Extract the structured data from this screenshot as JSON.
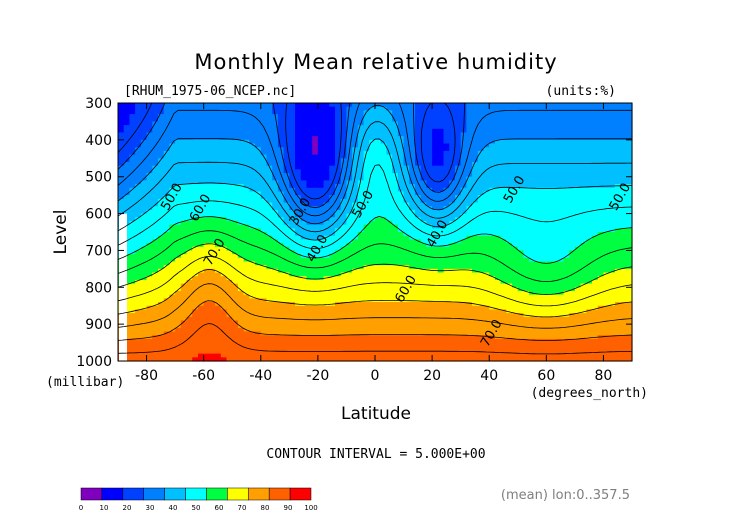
{
  "chart_data": {
    "type": "heatmap",
    "title": "Monthly Mean relative humidity",
    "subtitle_left": "[RHUM_1975-06_NCEP.nc]",
    "subtitle_right": "(units:%)",
    "ylabel": "Level",
    "ylabel_units": "(millibar)",
    "xlabel": "Latitude",
    "xlabel_units": "(degrees_north)",
    "x_ticks": [
      -80,
      -60,
      -40,
      -20,
      0,
      20,
      40,
      60,
      80
    ],
    "y_ticks": [
      300,
      400,
      500,
      600,
      700,
      800,
      900,
      1000
    ],
    "xlim": [
      -90,
      90
    ],
    "ylim": [
      1000,
      300
    ],
    "contour_interval_text": "CONTOUR INTERVAL = 5.000E+00",
    "footer_right": "(mean) lon:0..357.5",
    "colorbar": {
      "ticks": [
        "0",
        "10",
        "20",
        "30",
        "40",
        "50",
        "60",
        "70",
        "80",
        "90",
        "100"
      ],
      "colors": [
        "#7f00bf",
        "#0000ff",
        "#0040ff",
        "#0080ff",
        "#00c0ff",
        "#00ffff",
        "#00ff40",
        "#ffff00",
        "#ffa000",
        "#ff6000",
        "#ff0000"
      ]
    },
    "contour_labels": [
      {
        "text": "50.0",
        "lat": -70,
        "lev": 560
      },
      {
        "text": "60.0",
        "lat": -60,
        "lev": 590
      },
      {
        "text": "70.0",
        "lat": -55,
        "lev": 710
      },
      {
        "text": "30.0",
        "lat": -25,
        "lev": 600
      },
      {
        "text": "40.0",
        "lat": -19,
        "lev": 700
      },
      {
        "text": "50.0",
        "lat": -3,
        "lev": 580
      },
      {
        "text": "60.0",
        "lat": 12,
        "lev": 810
      },
      {
        "text": "40.0",
        "lat": 23,
        "lev": 660
      },
      {
        "text": "70.0",
        "lat": 42,
        "lev": 930
      },
      {
        "text": "50.0",
        "lat": 50,
        "lev": 540
      },
      {
        "text": "50.0",
        "lat": 87,
        "lev": 560
      }
    ],
    "series": []
  }
}
